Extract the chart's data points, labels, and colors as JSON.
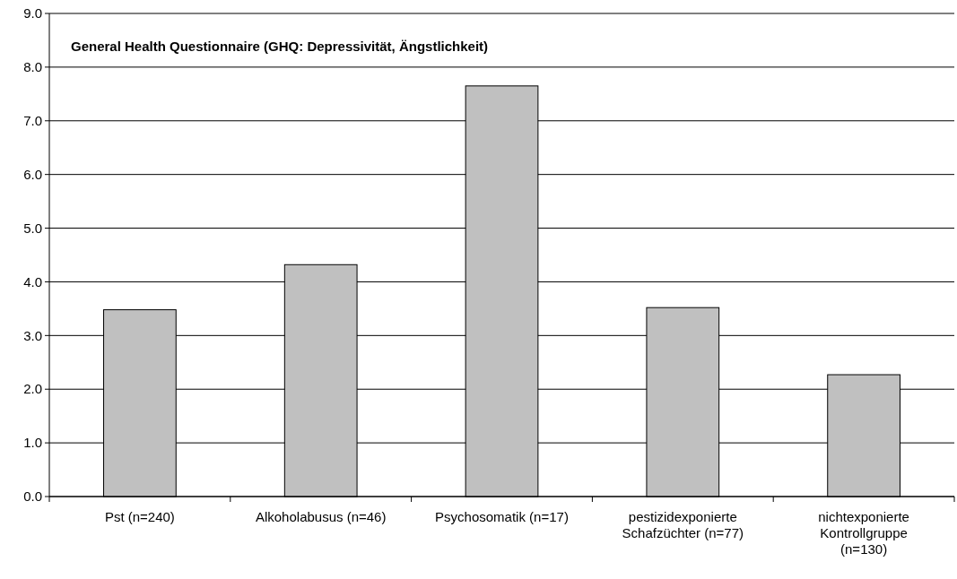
{
  "chart_data": {
    "type": "bar",
    "title": "General Health Questionnaire (GHQ: Depressivität, Ängstlichkeit)",
    "categories": [
      "Pst (n=240)",
      "Alkoholabusus (n=46)",
      "Psychosomatik (n=17)",
      "pestizidexponierte Schafzüchter (n=77)",
      "nichtexponierte Kontrollgruppe (n=130)"
    ],
    "values": [
      3.48,
      4.32,
      7.65,
      3.52,
      2.27
    ],
    "color": "#c0c0c0",
    "ylim": [
      0,
      9
    ],
    "yticks": [
      {
        "value": 0,
        "label": "0.0"
      },
      {
        "value": 1,
        "label": "1.0"
      },
      {
        "value": 2,
        "label": "2.0"
      },
      {
        "value": 3,
        "label": "3.0"
      },
      {
        "value": 4,
        "label": "4.0"
      },
      {
        "value": 5,
        "label": "5.0"
      },
      {
        "value": 6,
        "label": "6.0"
      },
      {
        "value": 7,
        "label": "7.0"
      },
      {
        "value": 8,
        "label": "8.0"
      },
      {
        "value": 9,
        "label": "9.0"
      }
    ],
    "grid": "y"
  }
}
